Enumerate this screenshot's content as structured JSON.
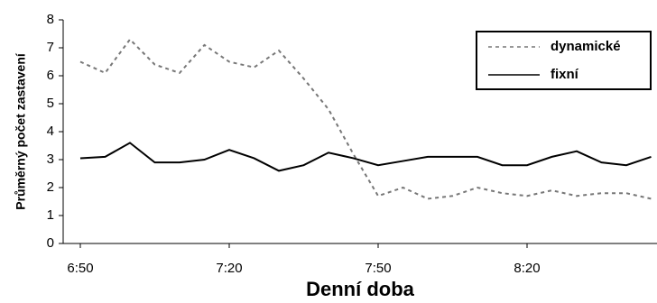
{
  "chart_data": {
    "type": "line",
    "x_label": "Denní doba",
    "y_label": "Průměrný počet zastavení",
    "categories": [
      "6:50",
      null,
      null,
      null,
      null,
      null,
      "7:20",
      null,
      null,
      null,
      null,
      null,
      "7:50",
      null,
      null,
      null,
      null,
      null,
      "8:20",
      null,
      null,
      null,
      null,
      null
    ],
    "series": [
      {
        "name": "dynamické",
        "color": "#777777",
        "dash": true,
        "values": [
          6.5,
          6.1,
          7.3,
          6.4,
          6.1,
          7.1,
          6.5,
          6.3,
          6.9,
          5.9,
          4.8,
          3.2,
          1.7,
          2.0,
          1.6,
          1.7,
          2.0,
          1.8,
          1.7,
          1.9,
          1.7,
          1.8,
          1.8,
          1.6
        ]
      },
      {
        "name": "fixní",
        "color": "#000000",
        "dash": false,
        "values": [
          3.05,
          3.1,
          3.6,
          2.9,
          2.9,
          3.0,
          3.35,
          3.05,
          2.6,
          2.8,
          3.25,
          3.05,
          2.8,
          2.95,
          3.1,
          3.1,
          3.1,
          2.8,
          2.8,
          3.1,
          3.3,
          2.9,
          2.8,
          3.1
        ]
      }
    ],
    "ylim": [
      0,
      8
    ],
    "yticks": [
      0,
      1,
      2,
      3,
      4,
      5,
      6,
      7,
      8
    ],
    "grid": false,
    "legend": "top-right"
  }
}
